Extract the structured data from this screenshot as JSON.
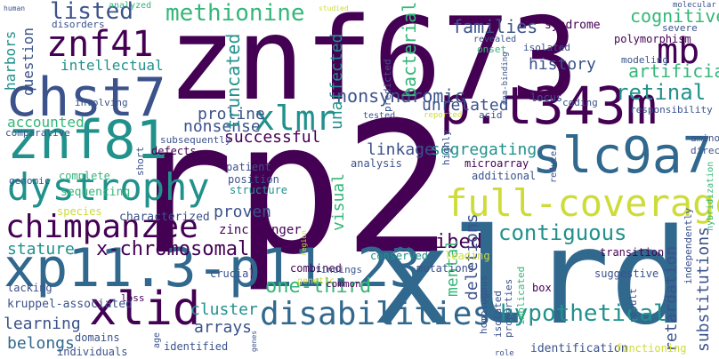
{
  "palette": {
    "purple": "#440154",
    "indigo": "#3b528b",
    "blue": "#31688e",
    "teal": "#21918c",
    "green": "#35b779",
    "lime": "#5ec962",
    "yellow": "#cddc39",
    "light": "#a0da39"
  },
  "words": {
    "znf673": "znf673",
    "rp2": "rp2",
    "xlrd": "xlrd",
    "xp11_3": "xp11.3-p11.23",
    "chst7": "chst7",
    "znf81": "znf81",
    "slc9a7": "slc9a7",
    "p_t343m": "p.t343m",
    "dystrophy": "dystrophy",
    "full_coverage": "full-coverage",
    "chimpanzee": "chimpanzee",
    "xlid": "xlid",
    "disabilities": "disabilities",
    "znf41": "znf41",
    "xlmr": "xlmr",
    "methionine": "methionine",
    "listed": "listed",
    "mb": "mb",
    "x_chromosomal": "x-chromosomal",
    "hypothetical": "hypothetical",
    "contiguous": "contiguous",
    "one_third": "one-third",
    "ascribed": "ascribed",
    "intellectual": "intellectual",
    "nonsyndromic": "nonsyndromic",
    "retinal": "retinal",
    "families": "families",
    "cognitive": "cognitive",
    "history": "history",
    "artificial": "artificial",
    "unrelated": "unrelated",
    "proline": "proline",
    "nonsense": "nonsense",
    "successful": "successful",
    "accounted": "accounted",
    "linkage": "linkage",
    "segregating": "segregating",
    "proven": "proven",
    "stature": "stature",
    "learning": "learning",
    "belongs": "belongs",
    "arrays": "arrays",
    "cluster": "cluster",
    "deletions": "deletions",
    "retardation": "retardation",
    "substitutions": "substitutions",
    "truncated": "truncated",
    "unaffected": "unaffected",
    "bacterial": "bacterial",
    "question": "question",
    "harbors": "harbors",
    "mental": "mental",
    "visual": "visual",
    "zinc_finger": "zinc-finger",
    "kruppel": "kruppel-associated",
    "characterized": "characterized",
    "sequencing": "sequencing",
    "species": "species",
    "complete": "complete",
    "genomic": "genomic",
    "comparative": "comparative",
    "short": "short",
    "defects": "defects",
    "subsequently": "subsequently",
    "patient": "patient",
    "position": "position",
    "structure": "structure",
    "analysis": "analysis",
    "microarray": "microarray",
    "additional": "additional",
    "highly": "highly",
    "mutations": "mutations",
    "conserved": "conserved",
    "transition": "transition",
    "suggestive": "suggestive",
    "homologous": "homologous",
    "isolated": "isolated",
    "properties": "properties",
    "leading": "leading",
    "combined": "combined",
    "crucial": "crucial",
    "loss": "loss",
    "lacking": "lacking",
    "domains": "domains",
    "individuals": "individuals",
    "identified": "identified",
    "age": "age",
    "genes": "genes",
    "genetic": "genetic",
    "findings": "findings",
    "common": "common",
    "implicated": "implicated",
    "box": "box",
    "identification": "identification",
    "functioning": "functioning",
    "role": "role",
    "result": "result",
    "independently": "independently",
    "hybridization": "hybridization",
    "amino": "amino",
    "direct": "direct",
    "reduce": "reduce",
    "acid": "acid",
    "coding": "coding",
    "locus": "locus",
    "responsibility": "responsibility",
    "modeling": "modeling",
    "severe": "severe",
    "polymorphism": "polymorphism",
    "syndrome": "syndrome",
    "onset": "onset",
    "revealed": "revealed",
    "isolated2": "isolated",
    "predicted": "predicted",
    "dna_binding": "dna-binding",
    "tested": "tested",
    "reported": "reported",
    "involving": "involving",
    "disorders": "disorders",
    "analyzed": "analyzed",
    "human": "human",
    "studied": "studied",
    "molecular": "molecular",
    "region": "region"
  }
}
